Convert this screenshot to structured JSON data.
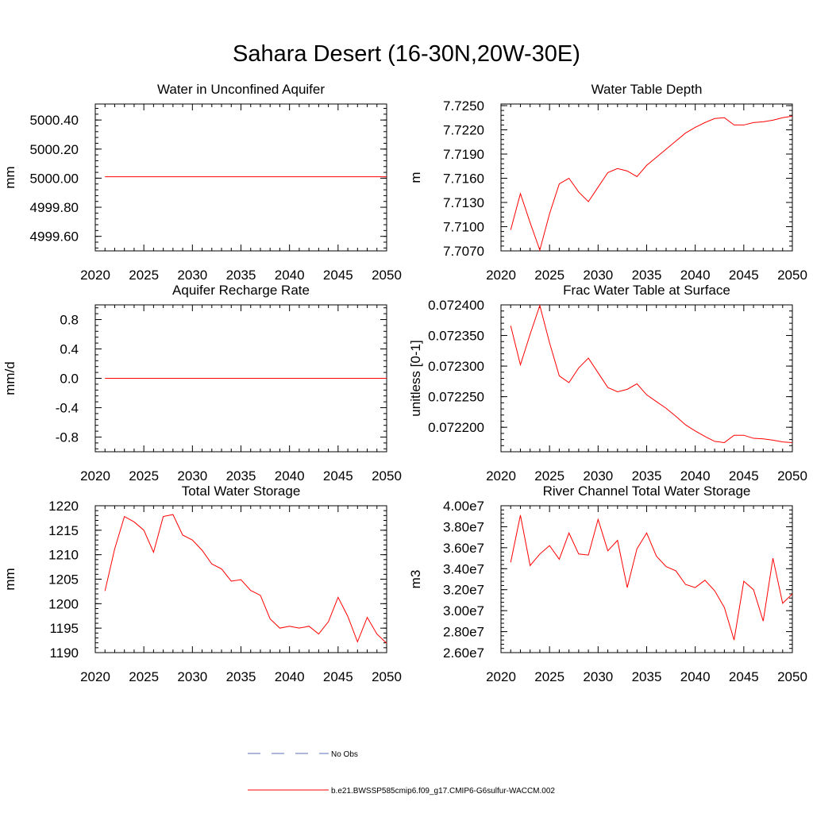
{
  "figure": {
    "title": "Sahara Desert (16-30N,20W-30E)",
    "legend": {
      "obs_label": "No Obs",
      "obs_color": "#5b6fb5",
      "model_label": "b.e21.BWSSP585cmip6.f09_g17.CMIP6-G6sulfur-WACCM.002",
      "model_color": "#ff0000"
    }
  },
  "chart_data": [
    {
      "type": "line",
      "title": "Water in Unconfined Aquifer",
      "ylabel": "mm",
      "xlim": [
        2020,
        2050
      ],
      "ylim": [
        4999.5,
        5000.51
      ],
      "xticks": [
        "2020",
        "2025",
        "2030",
        "2035",
        "2040",
        "2045",
        "2050"
      ],
      "yticks": [
        {
          "v": 4999.6,
          "label": "4999.60"
        },
        {
          "v": 4999.8,
          "label": "4999.80"
        },
        {
          "v": 5000.0,
          "label": "5000.00"
        },
        {
          "v": 5000.2,
          "label": "5000.20"
        },
        {
          "v": 5000.4,
          "label": "5000.40"
        }
      ],
      "x": [
        2021,
        2022,
        2023,
        2024,
        2025,
        2026,
        2027,
        2028,
        2029,
        2030,
        2031,
        2032,
        2033,
        2034,
        2035,
        2036,
        2037,
        2038,
        2039,
        2040,
        2041,
        2042,
        2043,
        2044,
        2045,
        2046,
        2047,
        2048,
        2049,
        2050
      ],
      "series": [
        {
          "values": [
            5000.01,
            5000.01,
            5000.01,
            5000.01,
            5000.01,
            5000.01,
            5000.01,
            5000.01,
            5000.01,
            5000.01,
            5000.01,
            5000.01,
            5000.01,
            5000.01,
            5000.01,
            5000.01,
            5000.01,
            5000.01,
            5000.01,
            5000.01,
            5000.01,
            5000.01,
            5000.01,
            5000.01,
            5000.01,
            5000.01,
            5000.01,
            5000.01,
            5000.01,
            5000.01
          ]
        }
      ]
    },
    {
      "type": "line",
      "title": "Water Table Depth",
      "ylabel": "m",
      "xlim": [
        2020,
        2050
      ],
      "ylim": [
        7.707,
        7.7252
      ],
      "xticks": [
        "2020",
        "2025",
        "2030",
        "2035",
        "2040",
        "2045",
        "2050"
      ],
      "yticks": [
        {
          "v": 7.707,
          "label": "7.7070"
        },
        {
          "v": 7.71,
          "label": "7.7100"
        },
        {
          "v": 7.713,
          "label": "7.7130"
        },
        {
          "v": 7.716,
          "label": "7.7160"
        },
        {
          "v": 7.719,
          "label": "7.7190"
        },
        {
          "v": 7.722,
          "label": "7.7220"
        },
        {
          "v": 7.725,
          "label": "7.7250"
        }
      ],
      "x": [
        2021,
        2022,
        2023,
        2024,
        2025,
        2026,
        2027,
        2028,
        2029,
        2030,
        2031,
        2032,
        2033,
        2034,
        2035,
        2036,
        2037,
        2038,
        2039,
        2040,
        2041,
        2042,
        2043,
        2044,
        2045,
        2046,
        2047,
        2048,
        2049,
        2050
      ],
      "series": [
        {
          "values": [
            7.7096,
            7.7141,
            7.7105,
            7.7071,
            7.7116,
            7.7153,
            7.716,
            7.7143,
            7.7131,
            7.7149,
            7.7167,
            7.7172,
            7.7169,
            7.7162,
            7.7176,
            7.7186,
            7.7196,
            7.7206,
            7.7216,
            7.7223,
            7.7229,
            7.7234,
            7.7235,
            7.7226,
            7.7226,
            7.7229,
            7.723,
            7.7232,
            7.7235,
            7.7237
          ]
        }
      ]
    },
    {
      "type": "line",
      "title": "Aquifer Recharge Rate",
      "ylabel": "mm/d",
      "xlim": [
        2020,
        2050
      ],
      "ylim": [
        -1.0,
        1.0
      ],
      "xticks": [
        "2020",
        "2025",
        "2030",
        "2035",
        "2040",
        "2045",
        "2050"
      ],
      "yticks": [
        {
          "v": -0.8,
          "label": "-0.8"
        },
        {
          "v": -0.4,
          "label": "-0.4"
        },
        {
          "v": 0.0,
          "label": "0.0"
        },
        {
          "v": 0.4,
          "label": "0.4"
        },
        {
          "v": 0.8,
          "label": "0.8"
        }
      ],
      "x": [
        2021,
        2022,
        2023,
        2024,
        2025,
        2026,
        2027,
        2028,
        2029,
        2030,
        2031,
        2032,
        2033,
        2034,
        2035,
        2036,
        2037,
        2038,
        2039,
        2040,
        2041,
        2042,
        2043,
        2044,
        2045,
        2046,
        2047,
        2048,
        2049,
        2050
      ],
      "series": [
        {
          "values": [
            0,
            0,
            0,
            0,
            0,
            0,
            0,
            0,
            0,
            0,
            0,
            0,
            0,
            0,
            0,
            0,
            0,
            0,
            0,
            0,
            0,
            0,
            0,
            0,
            0,
            0,
            0,
            0,
            0,
            0
          ]
        }
      ]
    },
    {
      "type": "line",
      "title": "Frac Water Table at Surface",
      "ylabel": "unitless [0-1]",
      "xlim": [
        2020,
        2050
      ],
      "ylim": [
        0.07216,
        0.0724
      ],
      "xticks": [
        "2020",
        "2025",
        "2030",
        "2035",
        "2040",
        "2045",
        "2050"
      ],
      "yticks": [
        {
          "v": 0.0722,
          "label": "0.072200"
        },
        {
          "v": 0.07225,
          "label": "0.072250"
        },
        {
          "v": 0.0723,
          "label": "0.072300"
        },
        {
          "v": 0.07235,
          "label": "0.072350"
        },
        {
          "v": 0.0724,
          "label": "0.072400"
        }
      ],
      "x": [
        2021,
        2022,
        2023,
        2024,
        2025,
        2026,
        2027,
        2028,
        2029,
        2030,
        2031,
        2032,
        2033,
        2034,
        2035,
        2036,
        2037,
        2038,
        2039,
        2040,
        2041,
        2042,
        2043,
        2044,
        2045,
        2046,
        2047,
        2048,
        2049,
        2050
      ],
      "series": [
        {
          "values": [
            0.072366,
            0.072302,
            0.072352,
            0.072399,
            0.072338,
            0.072284,
            0.072273,
            0.072297,
            0.072313,
            0.072289,
            0.072265,
            0.072258,
            0.072262,
            0.072271,
            0.072253,
            0.072242,
            0.072231,
            0.072218,
            0.072204,
            0.072194,
            0.072185,
            0.072177,
            0.072175,
            0.072187,
            0.072187,
            0.072182,
            0.072181,
            0.072179,
            0.072176,
            0.072175
          ]
        }
      ]
    },
    {
      "type": "line",
      "title": "Total Water Storage",
      "ylabel": "mm",
      "xlim": [
        2020,
        2050
      ],
      "ylim": [
        1190,
        1220
      ],
      "xticks": [
        "2020",
        "2025",
        "2030",
        "2035",
        "2040",
        "2045",
        "2050"
      ],
      "yticks": [
        {
          "v": 1190,
          "label": "1190"
        },
        {
          "v": 1195,
          "label": "1195"
        },
        {
          "v": 1200,
          "label": "1200"
        },
        {
          "v": 1205,
          "label": "1205"
        },
        {
          "v": 1210,
          "label": "1210"
        },
        {
          "v": 1215,
          "label": "1215"
        },
        {
          "v": 1220,
          "label": "1220"
        }
      ],
      "x": [
        2021,
        2022,
        2023,
        2024,
        2025,
        2026,
        2027,
        2028,
        2029,
        2030,
        2031,
        2032,
        2033,
        2034,
        2035,
        2036,
        2037,
        2038,
        2039,
        2040,
        2041,
        2042,
        2043,
        2044,
        2045,
        2046,
        2047,
        2048,
        2049,
        2050
      ],
      "series": [
        {
          "values": [
            1202.6,
            1211.2,
            1217.8,
            1216.7,
            1215.0,
            1210.5,
            1217.8,
            1218.2,
            1214.0,
            1213.0,
            1210.9,
            1208.1,
            1207.1,
            1204.6,
            1204.9,
            1202.7,
            1201.7,
            1196.9,
            1195.0,
            1195.4,
            1195.0,
            1195.4,
            1193.8,
            1196.3,
            1201.3,
            1197.4,
            1192.2,
            1197.2,
            1193.8,
            1191.9
          ]
        }
      ]
    },
    {
      "type": "line",
      "title": "River Channel Total Water Storage",
      "ylabel": "m3",
      "xlim": [
        2020,
        2050
      ],
      "ylim": [
        26000000,
        40000000
      ],
      "xticks": [
        "2020",
        "2025",
        "2030",
        "2035",
        "2040",
        "2045",
        "2050"
      ],
      "yticks": [
        {
          "v": 26000000,
          "label": "2.60e7"
        },
        {
          "v": 28000000,
          "label": "2.80e7"
        },
        {
          "v": 30000000,
          "label": "3.00e7"
        },
        {
          "v": 32000000,
          "label": "3.20e7"
        },
        {
          "v": 34000000,
          "label": "3.40e7"
        },
        {
          "v": 36000000,
          "label": "3.60e7"
        },
        {
          "v": 38000000,
          "label": "3.80e7"
        },
        {
          "v": 40000000,
          "label": "4.00e7"
        }
      ],
      "x": [
        2021,
        2022,
        2023,
        2024,
        2025,
        2026,
        2027,
        2028,
        2029,
        2030,
        2031,
        2032,
        2033,
        2034,
        2035,
        2036,
        2037,
        2038,
        2039,
        2040,
        2041,
        2042,
        2043,
        2044,
        2045,
        2046,
        2047,
        2048,
        2049,
        2050
      ],
      "series": [
        {
          "values": [
            34600000,
            39100000,
            34300000,
            35400000,
            36200000,
            34900000,
            37400000,
            35400000,
            35300000,
            38700000,
            35700000,
            36700000,
            32200000,
            35900000,
            37400000,
            35200000,
            34200000,
            33800000,
            32500000,
            32200000,
            32900000,
            31900000,
            30300000,
            27200000,
            32800000,
            32000000,
            29000000,
            35000000,
            30700000,
            31600000
          ]
        }
      ]
    }
  ]
}
